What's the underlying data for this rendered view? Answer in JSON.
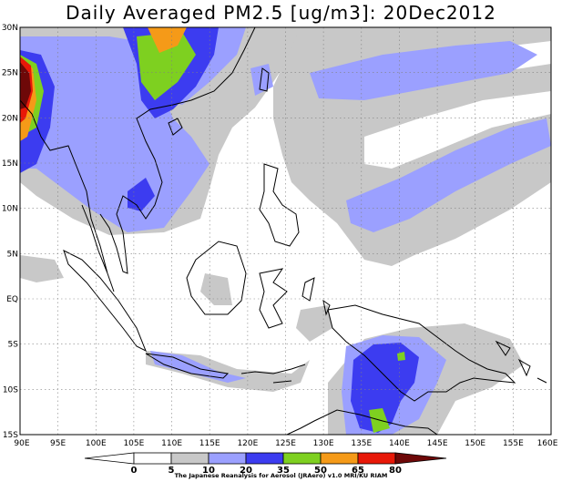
{
  "title": "Daily Averaged PM2.5 [ug/m3]: 20Dec2012",
  "map": {
    "lon_range": [
      90,
      160
    ],
    "lat_range": [
      -15,
      30
    ],
    "lon_ticks": [
      "90E",
      "95E",
      "100E",
      "105E",
      "110E",
      "115E",
      "120E",
      "125E",
      "130E",
      "135E",
      "140E",
      "145E",
      "150E",
      "155E",
      "160E"
    ],
    "lat_ticks": [
      "30N",
      "25N",
      "20N",
      "15N",
      "10N",
      "5N",
      "EQ",
      "5S",
      "10S",
      "15S"
    ]
  },
  "colorbar": {
    "labels": [
      "0",
      "5",
      "10",
      "20",
      "35",
      "50",
      "65",
      "80"
    ],
    "colors": [
      "#ffffff",
      "#c8c8c8",
      "#9ba0ff",
      "#3c3cf0",
      "#7ed020",
      "#f59a18",
      "#e81808",
      "#6e0808"
    ]
  },
  "credit": "The Japanese Reanalysis for Aerosol (JRAero) v1.0 MRI/KU RIAM"
}
